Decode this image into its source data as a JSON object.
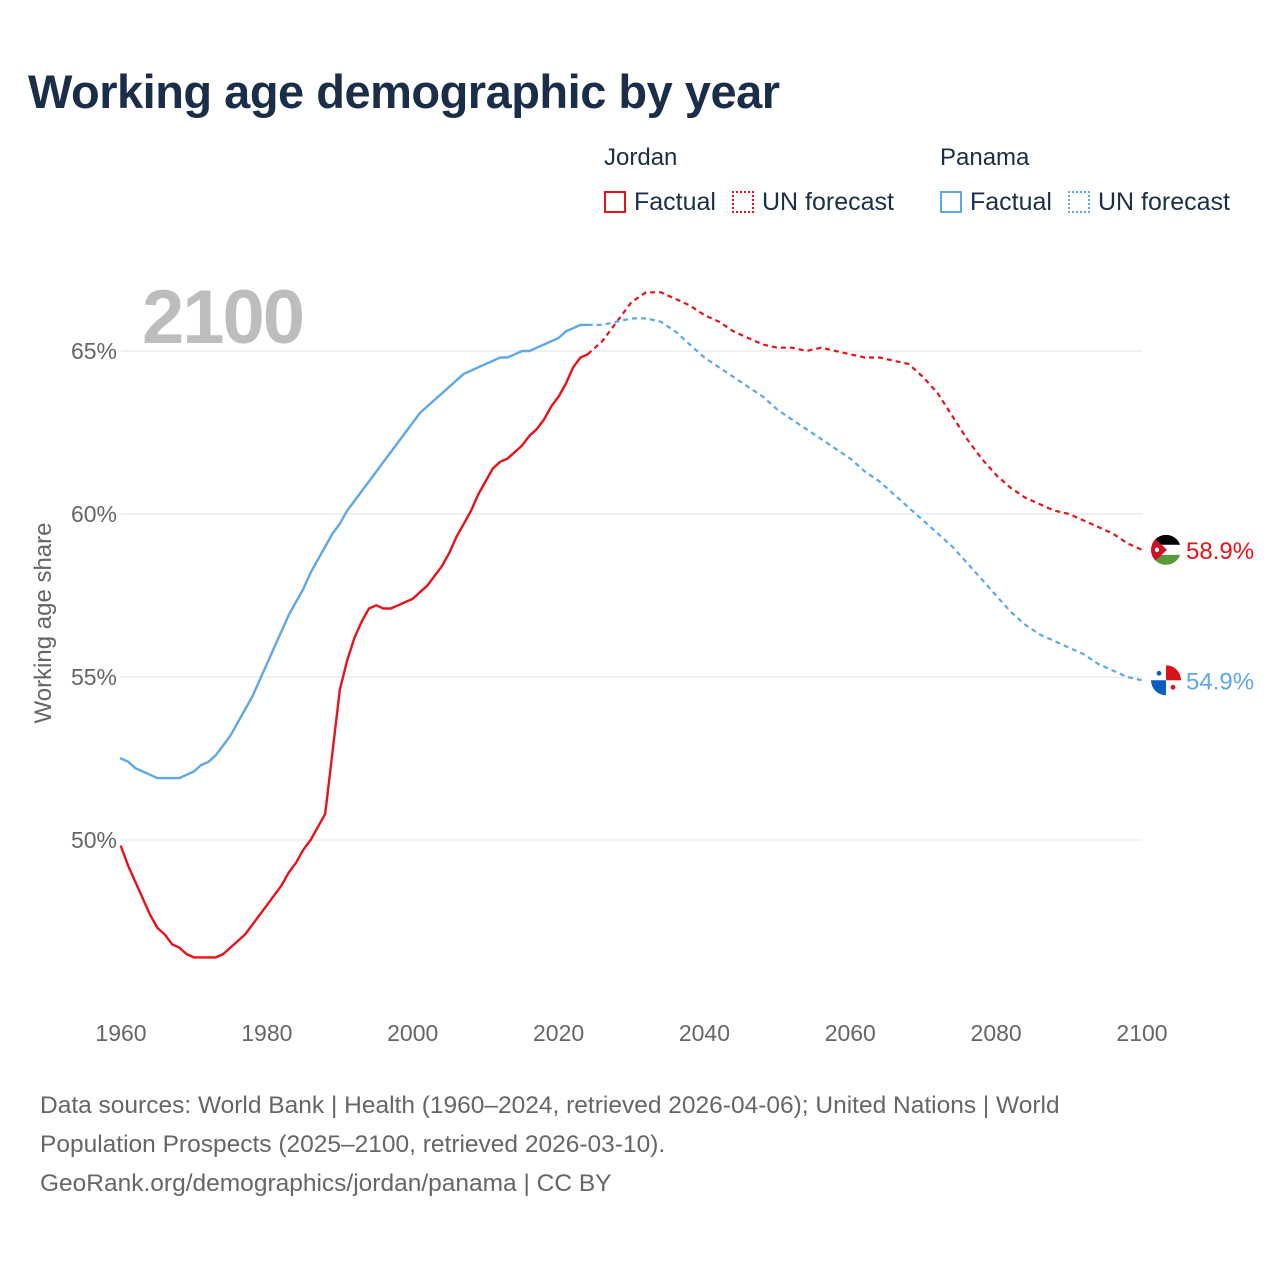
{
  "title": "Working age demographic by year",
  "legend": {
    "groups": [
      {
        "country": "Jordan",
        "factual_label": "Factual",
        "forecast_label": "UN forecast",
        "color": "#e8121b"
      },
      {
        "country": "Panama",
        "factual_label": "Factual",
        "forecast_label": "UN forecast",
        "color": "#5ea8e8"
      }
    ]
  },
  "year_display": "2100",
  "footer": {
    "line1": "Data sources: World Bank | Health (1960–2024, retrieved 2026-04-06); United Nations | World",
    "line2": "Population Prospects (2025–2100, retrieved 2026-03-10).",
    "line3": "GeoRank.org/demographics/jordan/panama | CC BY"
  },
  "chart_data": {
    "type": "line",
    "title": "Working age demographic by year",
    "xlabel": "",
    "ylabel": "Working age share",
    "xlim": [
      1960,
      2100
    ],
    "ylim": [
      45,
      67
    ],
    "xticks": [
      1960,
      1980,
      2000,
      2020,
      2040,
      2060,
      2080,
      2100
    ],
    "xtick_labels": [
      "1960",
      "1980",
      "2000",
      "2020",
      "2040",
      "2060",
      "2080",
      "2100"
    ],
    "yticks": [
      50,
      55,
      60,
      65
    ],
    "ytick_labels": [
      "50%",
      "55%",
      "60%",
      "65%"
    ],
    "grid": true,
    "series": [
      {
        "name": "Jordan",
        "color": "#e8121b",
        "end_label": "58.9%",
        "factual": {
          "x": [
            1960,
            1961,
            1962,
            1963,
            1964,
            1965,
            1966,
            1967,
            1968,
            1969,
            1970,
            1971,
            1972,
            1973,
            1974,
            1975,
            1976,
            1977,
            1978,
            1979,
            1980,
            1981,
            1982,
            1983,
            1984,
            1985,
            1986,
            1987,
            1988,
            1989,
            1990,
            1991,
            1992,
            1993,
            1994,
            1995,
            1996,
            1997,
            1998,
            1999,
            2000,
            2001,
            2002,
            2003,
            2004,
            2005,
            2006,
            2007,
            2008,
            2009,
            2010,
            2011,
            2012,
            2013,
            2014,
            2015,
            2016,
            2017,
            2018,
            2019,
            2020,
            2021,
            2022,
            2023,
            2024
          ],
          "y": [
            49.8,
            49.2,
            48.7,
            48.2,
            47.7,
            47.3,
            47.1,
            46.8,
            46.7,
            46.5,
            46.4,
            46.4,
            46.4,
            46.4,
            46.5,
            46.7,
            46.9,
            47.1,
            47.4,
            47.7,
            48.0,
            48.3,
            48.6,
            49.0,
            49.3,
            49.7,
            50.0,
            50.4,
            50.8,
            52.7,
            54.6,
            55.5,
            56.2,
            56.7,
            57.1,
            57.2,
            57.1,
            57.1,
            57.2,
            57.3,
            57.4,
            57.6,
            57.8,
            58.1,
            58.4,
            58.8,
            59.3,
            59.7,
            60.1,
            60.6,
            61.0,
            61.4,
            61.6,
            61.7,
            61.9,
            62.1,
            62.4,
            62.6,
            62.9,
            63.3,
            63.6,
            64.0,
            64.5,
            64.8,
            64.9
          ]
        },
        "forecast": {
          "x": [
            2024,
            2026,
            2028,
            2030,
            2032,
            2034,
            2036,
            2038,
            2040,
            2042,
            2044,
            2046,
            2048,
            2050,
            2052,
            2054,
            2056,
            2058,
            2060,
            2062,
            2064,
            2066,
            2068,
            2070,
            2072,
            2074,
            2076,
            2078,
            2080,
            2082,
            2084,
            2086,
            2088,
            2090,
            2092,
            2094,
            2096,
            2098,
            2100
          ],
          "y": [
            64.9,
            65.3,
            65.9,
            66.5,
            66.8,
            66.8,
            66.6,
            66.4,
            66.1,
            65.9,
            65.6,
            65.4,
            65.2,
            65.1,
            65.1,
            65.0,
            65.1,
            65.0,
            64.9,
            64.8,
            64.8,
            64.7,
            64.6,
            64.2,
            63.7,
            63.0,
            62.3,
            61.7,
            61.2,
            60.8,
            60.5,
            60.3,
            60.1,
            60.0,
            59.8,
            59.6,
            59.4,
            59.1,
            58.9
          ]
        }
      },
      {
        "name": "Panama",
        "color": "#5ea8e8",
        "end_label": "54.9%",
        "factual": {
          "x": [
            1960,
            1961,
            1962,
            1963,
            1964,
            1965,
            1966,
            1967,
            1968,
            1969,
            1970,
            1971,
            1972,
            1973,
            1974,
            1975,
            1976,
            1977,
            1978,
            1979,
            1980,
            1981,
            1982,
            1983,
            1984,
            1985,
            1986,
            1987,
            1988,
            1989,
            1990,
            1991,
            1992,
            1993,
            1994,
            1995,
            1996,
            1997,
            1998,
            1999,
            2000,
            2001,
            2002,
            2003,
            2004,
            2005,
            2006,
            2007,
            2008,
            2009,
            2010,
            2011,
            2012,
            2013,
            2014,
            2015,
            2016,
            2017,
            2018,
            2019,
            2020,
            2021,
            2022,
            2023,
            2024
          ],
          "y": [
            52.5,
            52.4,
            52.2,
            52.1,
            52.0,
            51.9,
            51.9,
            51.9,
            51.9,
            52.0,
            52.1,
            52.3,
            52.4,
            52.6,
            52.9,
            53.2,
            53.6,
            54.0,
            54.4,
            54.9,
            55.4,
            55.9,
            56.4,
            56.9,
            57.3,
            57.7,
            58.2,
            58.6,
            59.0,
            59.4,
            59.7,
            60.1,
            60.4,
            60.7,
            61.0,
            61.3,
            61.6,
            61.9,
            62.2,
            62.5,
            62.8,
            63.1,
            63.3,
            63.5,
            63.7,
            63.9,
            64.1,
            64.3,
            64.4,
            64.5,
            64.6,
            64.7,
            64.8,
            64.8,
            64.9,
            65.0,
            65.0,
            65.1,
            65.2,
            65.3,
            65.4,
            65.6,
            65.7,
            65.8,
            65.8
          ]
        },
        "forecast": {
          "x": [
            2024,
            2026,
            2028,
            2030,
            2032,
            2034,
            2036,
            2038,
            2040,
            2042,
            2044,
            2046,
            2048,
            2050,
            2052,
            2054,
            2056,
            2058,
            2060,
            2062,
            2064,
            2066,
            2068,
            2070,
            2072,
            2074,
            2076,
            2078,
            2080,
            2082,
            2084,
            2086,
            2088,
            2090,
            2092,
            2094,
            2096,
            2098,
            2100
          ],
          "y": [
            65.8,
            65.8,
            65.9,
            66.0,
            66.0,
            65.9,
            65.6,
            65.2,
            64.8,
            64.5,
            64.2,
            63.9,
            63.6,
            63.2,
            62.9,
            62.6,
            62.3,
            62.0,
            61.7,
            61.3,
            61.0,
            60.6,
            60.2,
            59.8,
            59.4,
            59.0,
            58.5,
            58.0,
            57.5,
            57.0,
            56.6,
            56.3,
            56.1,
            55.9,
            55.7,
            55.4,
            55.2,
            55.0,
            54.9
          ]
        }
      }
    ]
  }
}
